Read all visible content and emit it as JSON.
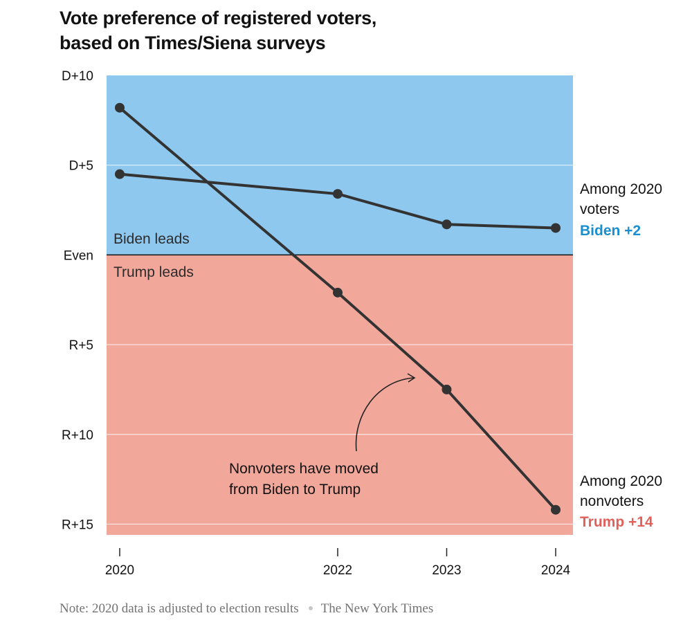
{
  "title_lines": [
    "Vote preference of registered voters,",
    "based on Times/Siena surveys"
  ],
  "region_labels": {
    "above": "Biden leads",
    "below": "Trump leads"
  },
  "end_labels": {
    "voters": {
      "line1": "Among 2020",
      "line2": "voters",
      "value": "Biden +2",
      "color": "#1a8fcf"
    },
    "nonvoters": {
      "line1": "Among 2020",
      "line2": "nonvoters",
      "value": "Trump +14",
      "color": "#e0605a"
    }
  },
  "annotation": {
    "line1": "Nonvoters have moved",
    "line2": "from Biden to Trump"
  },
  "footer": {
    "note": "Note: 2020 data is adjusted to election results",
    "source": "The New York Times"
  },
  "colors": {
    "dem_band": "#8ec8ee",
    "rep_band": "#f2a79b",
    "line": "#333333"
  },
  "chart_data": {
    "type": "line",
    "x": [
      2020,
      2022,
      2023,
      2024
    ],
    "x_tick_labels": [
      "2020",
      "2022",
      "2023",
      "2024"
    ],
    "y_unit": "margin (Democratic minus Republican, points)",
    "ylim": [
      -15.6,
      10
    ],
    "y_ticks": [
      10,
      5,
      0,
      -5,
      -10,
      -15
    ],
    "y_tick_labels": [
      "D+10",
      "D+5",
      "Even",
      "R+5",
      "R+10",
      "R+15"
    ],
    "grid": true,
    "series": [
      {
        "name": "Among 2020 voters",
        "values": [
          4.5,
          3.4,
          1.7,
          1.5
        ]
      },
      {
        "name": "Among 2020 nonvoters",
        "values": [
          8.2,
          -2.1,
          -7.5,
          -14.2
        ]
      }
    ]
  }
}
